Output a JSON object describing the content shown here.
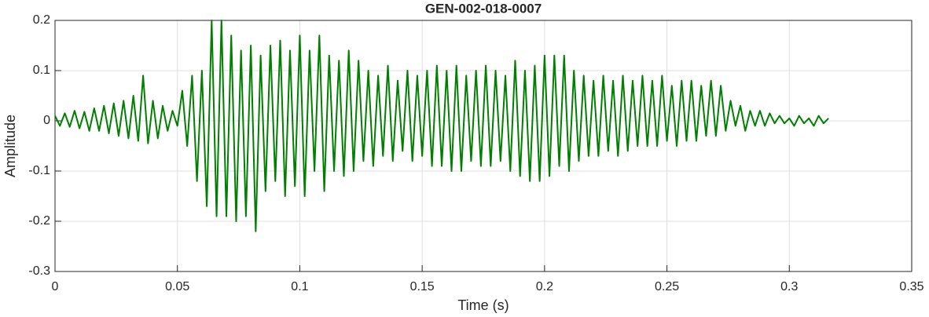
{
  "chart_data": {
    "type": "line",
    "title": "GEN-002-018-0007",
    "x_label": "Time (s)",
    "y_label": "Amplitude",
    "xlim": [
      0,
      0.35
    ],
    "xticks": [
      0,
      0.05,
      0.1,
      0.15,
      0.2,
      0.25,
      0.3,
      0.35
    ],
    "ylim": [
      -0.3,
      0.2
    ],
    "yticks": [
      -0.3,
      -0.2,
      -0.1,
      0,
      0.1,
      0.2
    ],
    "grid": true,
    "x": [
      0,
      0.002,
      0.004,
      0.006,
      0.008,
      0.01,
      0.012,
      0.014,
      0.016,
      0.018,
      0.02,
      0.022,
      0.024,
      0.026,
      0.028,
      0.03,
      0.032,
      0.034,
      0.036,
      0.038,
      0.04,
      0.042,
      0.044,
      0.046,
      0.048,
      0.05,
      0.052,
      0.054,
      0.056,
      0.058,
      0.06,
      0.062,
      0.064,
      0.066,
      0.068,
      0.07,
      0.072,
      0.074,
      0.076,
      0.078,
      0.08,
      0.082,
      0.084,
      0.086,
      0.088,
      0.09,
      0.092,
      0.094,
      0.096,
      0.098,
      0.1,
      0.102,
      0.104,
      0.106,
      0.108,
      0.11,
      0.112,
      0.114,
      0.116,
      0.118,
      0.12,
      0.122,
      0.124,
      0.126,
      0.128,
      0.13,
      0.132,
      0.134,
      0.136,
      0.138,
      0.14,
      0.142,
      0.144,
      0.146,
      0.148,
      0.15,
      0.152,
      0.154,
      0.156,
      0.158,
      0.16,
      0.162,
      0.164,
      0.166,
      0.168,
      0.17,
      0.172,
      0.174,
      0.176,
      0.178,
      0.18,
      0.182,
      0.184,
      0.186,
      0.188,
      0.19,
      0.192,
      0.194,
      0.196,
      0.198,
      0.2,
      0.202,
      0.204,
      0.206,
      0.208,
      0.21,
      0.212,
      0.214,
      0.216,
      0.218,
      0.22,
      0.222,
      0.224,
      0.226,
      0.228,
      0.23,
      0.232,
      0.234,
      0.236,
      0.238,
      0.24,
      0.242,
      0.244,
      0.246,
      0.248,
      0.25,
      0.252,
      0.254,
      0.256,
      0.258,
      0.26,
      0.262,
      0.264,
      0.266,
      0.268,
      0.27,
      0.272,
      0.274,
      0.276,
      0.278,
      0.28,
      0.282,
      0.284,
      0.286,
      0.288,
      0.29,
      0.292,
      0.294,
      0.296,
      0.298,
      0.3,
      0.302,
      0.304,
      0.306,
      0.308,
      0.31,
      0.312,
      0.314,
      0.316
    ],
    "series": [
      {
        "color": "#007f00",
        "values": [
          0.01,
          -0.01,
          0.015,
          -0.012,
          0.02,
          -0.015,
          0.018,
          -0.02,
          0.025,
          -0.02,
          0.03,
          -0.025,
          0.035,
          -0.03,
          0.04,
          -0.035,
          0.05,
          -0.04,
          0.09,
          -0.045,
          0.04,
          -0.035,
          0.03,
          -0.02,
          0.02,
          -0.01,
          0.06,
          -0.05,
          0.09,
          -0.12,
          0.1,
          -0.17,
          0.2,
          -0.19,
          0.2,
          -0.19,
          0.17,
          -0.2,
          0.14,
          -0.19,
          0.15,
          -0.22,
          0.13,
          -0.14,
          0.15,
          -0.12,
          0.16,
          -0.15,
          0.14,
          -0.13,
          0.17,
          -0.15,
          0.14,
          -0.1,
          0.17,
          -0.14,
          0.13,
          -0.1,
          0.12,
          -0.11,
          0.14,
          -0.1,
          0.12,
          -0.08,
          0.1,
          -0.09,
          0.09,
          -0.07,
          0.11,
          -0.08,
          0.08,
          -0.06,
          0.1,
          -0.08,
          0.09,
          -0.07,
          0.1,
          -0.09,
          0.11,
          -0.09,
          0.1,
          -0.1,
          0.11,
          -0.1,
          0.09,
          -0.08,
          0.1,
          -0.09,
          0.11,
          -0.09,
          0.1,
          -0.08,
          0.09,
          -0.1,
          0.12,
          -0.11,
          0.1,
          -0.12,
          0.11,
          -0.12,
          0.13,
          -0.11,
          0.13,
          -0.09,
          0.13,
          -0.1,
          0.1,
          -0.08,
          0.09,
          -0.07,
          0.08,
          -0.07,
          0.09,
          -0.06,
          0.08,
          -0.07,
          0.09,
          -0.06,
          0.08,
          -0.05,
          0.09,
          -0.05,
          0.08,
          -0.05,
          0.09,
          -0.04,
          0.07,
          -0.05,
          0.08,
          -0.04,
          0.08,
          -0.04,
          0.07,
          -0.03,
          0.08,
          -0.03,
          0.07,
          -0.02,
          0.04,
          -0.01,
          0.03,
          -0.02,
          0.02,
          -0.01,
          0.02,
          -0.01,
          0.015,
          -0.005,
          0.01,
          -0.005,
          0.005,
          -0.01,
          0.01,
          -0.005,
          0.005,
          -0.01,
          0.01,
          -0.005,
          0.005
        ]
      }
    ]
  }
}
